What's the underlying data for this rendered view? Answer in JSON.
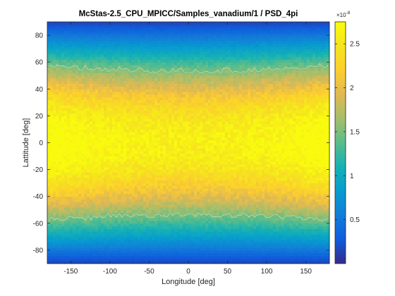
{
  "chart_data": {
    "type": "heatmap",
    "title": "McStas-2.5_CPU_MPICC/Samples_vanadium/1 / PSD_4pi",
    "xlabel": "Longitude [deg]",
    "ylabel": "Lattitude [deg]",
    "xlim": [
      -180,
      180
    ],
    "ylim": [
      -90,
      90
    ],
    "x_ticks": [
      -150,
      -100,
      -50,
      0,
      50,
      100,
      150
    ],
    "y_ticks": [
      80,
      60,
      40,
      20,
      0,
      -20,
      -40,
      -60,
      -80
    ],
    "grid": false,
    "colorbar": {
      "label": "",
      "multiplier": "×10",
      "exponent": "-8",
      "range": [
        0,
        2.75
      ],
      "ticks": [
        0.5,
        1,
        1.5,
        2,
        2.5
      ],
      "colormap": "parula"
    },
    "intensity_model": {
      "description": "intensity falls with latitude like cos(latitude), peak ~2.6e-8 near the equator, slight rise toward longitude ±180",
      "peak": 2.6,
      "pole_value": 0.15,
      "edge_boost": 0.12
    },
    "contour_levels": [
      1.5
    ]
  }
}
